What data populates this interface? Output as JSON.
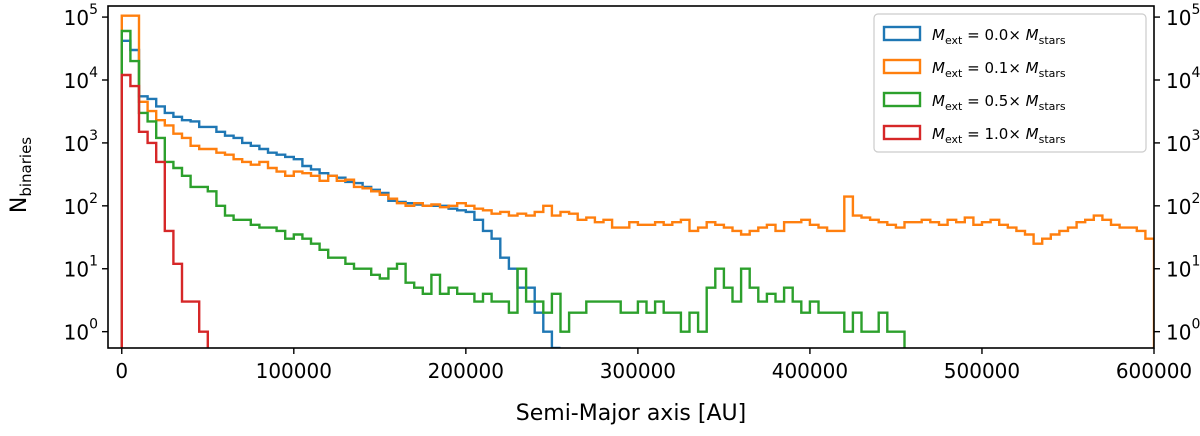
{
  "chart_data": {
    "type": "histogram",
    "title": "",
    "xlabel": "Semi-Major axis [AU]",
    "ylabel": {
      "main": "N",
      "sub": "binaries"
    },
    "xlim": [
      -8000,
      600000
    ],
    "ylim": [
      0.55,
      150000
    ],
    "yscale": "log",
    "grid": false,
    "legend_position": "top-right",
    "x_ticks": [
      {
        "value": 0,
        "label": "0"
      },
      {
        "value": 100000,
        "label": "100000"
      },
      {
        "value": 200000,
        "label": "200000"
      },
      {
        "value": 300000,
        "label": "300000"
      },
      {
        "value": 400000,
        "label": "400000"
      },
      {
        "value": 500000,
        "label": "500000"
      },
      {
        "value": 600000,
        "label": "600000"
      }
    ],
    "y_ticks": [
      {
        "value": 1,
        "base": "10",
        "exp": "0"
      },
      {
        "value": 10,
        "base": "10",
        "exp": "1"
      },
      {
        "value": 100,
        "base": "10",
        "exp": "2"
      },
      {
        "value": 1000,
        "base": "10",
        "exp": "3"
      },
      {
        "value": 10000,
        "base": "10",
        "exp": "4"
      },
      {
        "value": 100000,
        "base": "10",
        "exp": "5"
      }
    ],
    "series": [
      {
        "legend": {
          "lhs": "M",
          "lhs_sub": "ext",
          "mid": " = 0.0× ",
          "rhs": "M",
          "rhs_sub": "stars"
        },
        "color": "#1f77b4",
        "edges": [
          0,
          5000,
          10000,
          15000,
          20000,
          25000,
          30000,
          35000,
          40000,
          45000,
          50000,
          55000,
          60000,
          65000,
          70000,
          75000,
          80000,
          85000,
          90000,
          95000,
          100000,
          105000,
          110000,
          115000,
          120000,
          125000,
          130000,
          135000,
          140000,
          145000,
          150000,
          155000,
          160000,
          165000,
          170000,
          175000,
          180000,
          185000,
          190000,
          195000,
          200000,
          205000,
          210000,
          215000,
          220000,
          225000,
          230000,
          235000,
          240000,
          245000,
          250000,
          255000
        ],
        "counts": [
          42000,
          30000,
          5500,
          5000,
          3800,
          3000,
          2600,
          2300,
          2200,
          1800,
          1800,
          1500,
          1300,
          1200,
          1000,
          900,
          800,
          700,
          650,
          600,
          550,
          430,
          380,
          330,
          300,
          280,
          240,
          230,
          200,
          180,
          160,
          120,
          115,
          110,
          105,
          100,
          100,
          100,
          90,
          85,
          80,
          60,
          40,
          30,
          15,
          10,
          5,
          5,
          2,
          1,
          0
        ]
      },
      {
        "legend": {
          "lhs": "M",
          "lhs_sub": "ext",
          "mid": " = 0.1× ",
          "rhs": "M",
          "rhs_sub": "stars"
        },
        "color": "#ff7f0e",
        "edges": [
          0,
          5000,
          10000,
          15000,
          20000,
          25000,
          30000,
          35000,
          40000,
          45000,
          50000,
          55000,
          60000,
          65000,
          70000,
          75000,
          80000,
          85000,
          90000,
          95000,
          100000,
          105000,
          110000,
          115000,
          120000,
          125000,
          130000,
          135000,
          140000,
          145000,
          150000,
          155000,
          160000,
          165000,
          170000,
          175000,
          180000,
          185000,
          190000,
          195000,
          200000,
          205000,
          210000,
          215000,
          220000,
          225000,
          230000,
          235000,
          240000,
          245000,
          250000,
          255000,
          260000,
          265000,
          270000,
          275000,
          280000,
          285000,
          290000,
          295000,
          300000,
          305000,
          310000,
          315000,
          320000,
          325000,
          330000,
          335000,
          340000,
          345000,
          350000,
          355000,
          360000,
          365000,
          370000,
          375000,
          380000,
          385000,
          390000,
          395000,
          400000,
          405000,
          410000,
          415000,
          420000,
          425000,
          430000,
          435000,
          440000,
          445000,
          450000,
          455000,
          460000,
          465000,
          470000,
          475000,
          480000,
          485000,
          490000,
          495000,
          500000,
          505000,
          510000,
          515000,
          520000,
          525000,
          530000,
          535000,
          540000,
          545000,
          550000,
          555000,
          560000,
          565000,
          570000,
          575000,
          580000,
          585000,
          590000,
          595000,
          600000
        ],
        "counts": [
          105000,
          105000,
          4500,
          3200,
          2300,
          1900,
          1400,
          1200,
          900,
          800,
          800,
          700,
          650,
          550,
          500,
          450,
          500,
          400,
          350,
          300,
          350,
          330,
          300,
          250,
          300,
          250,
          260,
          200,
          190,
          170,
          150,
          130,
          110,
          100,
          110,
          100,
          105,
          95,
          100,
          110,
          100,
          90,
          85,
          75,
          80,
          70,
          75,
          70,
          80,
          100,
          70,
          80,
          75,
          60,
          65,
          55,
          60,
          45,
          45,
          55,
          50,
          50,
          55,
          50,
          55,
          60,
          40,
          45,
          55,
          50,
          45,
          40,
          35,
          40,
          45,
          50,
          40,
          55,
          55,
          60,
          50,
          45,
          40,
          40,
          140,
          70,
          65,
          60,
          55,
          50,
          45,
          55,
          55,
          60,
          55,
          50,
          60,
          55,
          65,
          50,
          55,
          60,
          50,
          45,
          40,
          35,
          25,
          30,
          35,
          40,
          45,
          55,
          60,
          70,
          60,
          50,
          45,
          45,
          40,
          30
        ]
      },
      {
        "legend": {
          "lhs": "M",
          "lhs_sub": "ext",
          "mid": " = 0.5× ",
          "rhs": "M",
          "rhs_sub": "stars"
        },
        "color": "#2ca02c",
        "edges": [
          0,
          5000,
          10000,
          15000,
          20000,
          25000,
          30000,
          35000,
          40000,
          45000,
          50000,
          55000,
          60000,
          65000,
          70000,
          75000,
          80000,
          85000,
          90000,
          95000,
          100000,
          105000,
          110000,
          115000,
          120000,
          125000,
          130000,
          135000,
          140000,
          145000,
          150000,
          155000,
          160000,
          165000,
          170000,
          175000,
          180000,
          185000,
          190000,
          195000,
          200000,
          205000,
          210000,
          215000,
          220000,
          225000,
          230000,
          235000,
          240000,
          245000,
          250000,
          255000,
          260000,
          265000,
          270000,
          275000,
          280000,
          285000,
          290000,
          295000,
          300000,
          305000,
          310000,
          315000,
          320000,
          325000,
          330000,
          335000,
          340000,
          345000,
          350000,
          355000,
          360000,
          365000,
          370000,
          375000,
          380000,
          385000,
          390000,
          395000,
          400000,
          405000,
          410000,
          415000,
          420000,
          425000,
          430000,
          435000,
          440000,
          445000,
          450000,
          455000
        ],
        "counts": [
          60000,
          20000,
          3000,
          2200,
          1200,
          500,
          400,
          300,
          200,
          200,
          170,
          100,
          70,
          60,
          60,
          50,
          45,
          45,
          40,
          30,
          35,
          30,
          25,
          20,
          15,
          15,
          12,
          10,
          10,
          8,
          7,
          10,
          12,
          6,
          5,
          4,
          8,
          4,
          5,
          4,
          4,
          3,
          4,
          3,
          3,
          2,
          10,
          3,
          3,
          2,
          4,
          1,
          2,
          2,
          3,
          3,
          3,
          3,
          2,
          2,
          3,
          2,
          3,
          2,
          2,
          1,
          2,
          1,
          5,
          10,
          5,
          3,
          10,
          5,
          3,
          4,
          3,
          5,
          3,
          2,
          3,
          2,
          2,
          2,
          1,
          2,
          1,
          1,
          2,
          1,
          1
        ]
      },
      {
        "legend": {
          "lhs": "M",
          "lhs_sub": "ext",
          "mid": " = 1.0× ",
          "rhs": "M",
          "rhs_sub": "stars"
        },
        "color": "#d62728",
        "edges": [
          0,
          5000,
          10000,
          15000,
          20000,
          25000,
          30000,
          35000,
          40000,
          45000,
          50000
        ],
        "counts": [
          12000,
          8000,
          1500,
          1000,
          500,
          40,
          12,
          3,
          3,
          1
        ]
      }
    ]
  }
}
